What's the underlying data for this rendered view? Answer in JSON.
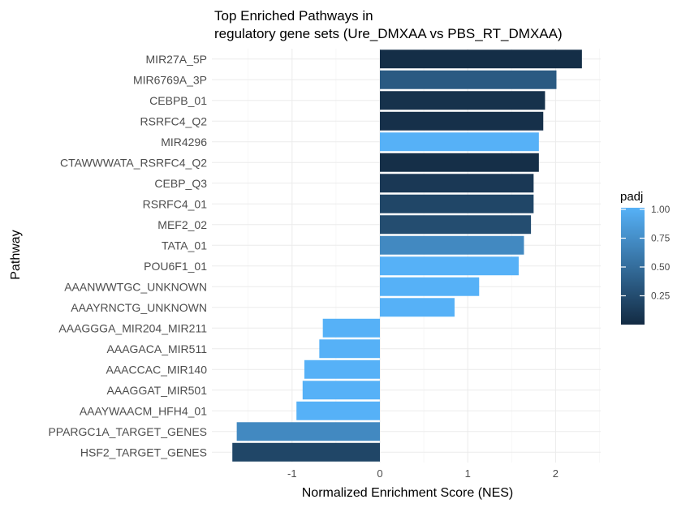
{
  "chart_data": {
    "type": "bar",
    "orientation": "horizontal",
    "title_line1": "Top Enriched Pathways in",
    "title_line2": "regulatory gene sets (Ure_DMXAA vs PBS_RT_DMXAA)",
    "xlabel": "Normalized Enrichment Score (NES)",
    "ylabel": "Pathway",
    "xlim": [
      -1.68,
      2.5
    ],
    "x_ticks": [
      -1,
      0,
      1,
      2
    ],
    "x_tick_labels": [
      "-1",
      "0",
      "1",
      "2"
    ],
    "categories": [
      "MIR27A_5P",
      "MIR6769A_3P",
      "CEBPB_01",
      "RSRFC4_Q2",
      "MIR4296",
      "CTAWWWATA_RSRFC4_Q2",
      "CEBP_Q3",
      "RSRFC4_01",
      "MEF2_02",
      "TATA_01",
      "POU6F1_01",
      "AAANWWTGC_UNKNOWN",
      "AAAYRNCTG_UNKNOWN",
      "AAAGGGA_MIR204_MIR211",
      "AAAGACA_MIR511",
      "AAACCAC_MIR140",
      "AAAGGAT_MIR501",
      "AAAYWAACM_HFH4_01",
      "PPARGC1A_TARGET_GENES",
      "HSF2_TARGET_GENES"
    ],
    "values": [
      2.3,
      2.01,
      1.88,
      1.86,
      1.81,
      1.81,
      1.75,
      1.75,
      1.72,
      1.64,
      1.58,
      1.13,
      0.85,
      -0.65,
      -0.69,
      -0.86,
      -0.88,
      -0.95,
      -1.63,
      -1.68
    ],
    "color_values": [
      0.02,
      0.35,
      0.05,
      0.04,
      1.0,
      0.03,
      0.1,
      0.2,
      0.25,
      0.7,
      1.0,
      1.0,
      1.0,
      1.0,
      1.0,
      1.0,
      1.0,
      1.0,
      0.7,
      0.2
    ],
    "grid": true,
    "legend": {
      "title": "padj",
      "position": "right",
      "ticks": [
        1.0,
        0.75,
        0.5,
        0.25
      ],
      "tick_labels": [
        "1.00",
        "0.75",
        "0.50",
        "0.25"
      ],
      "range": [
        0.0,
        1.0
      ],
      "low_color": "#132B43",
      "high_color": "#56B1F7"
    }
  }
}
